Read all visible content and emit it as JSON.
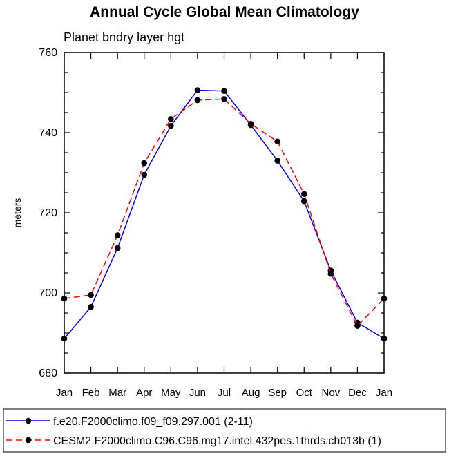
{
  "chart_data": {
    "type": "line",
    "title": "Annual Cycle Global Mean Climatology",
    "subtitle": "Planet bndry layer hgt",
    "xlabel": "",
    "ylabel": "meters",
    "ylim": [
      680,
      760
    ],
    "yticks": [
      "680",
      "700",
      "720",
      "740",
      "760"
    ],
    "categories": [
      "Jan",
      "Feb",
      "Mar",
      "Apr",
      "May",
      "Jun",
      "Jul",
      "Aug",
      "Sep",
      "Oct",
      "Nov",
      "Dec",
      "Jan"
    ],
    "series": [
      {
        "name": "f.e20.F2000climo.f09_f09.297.001 (2-11)",
        "color": "#0000ff",
        "dash": "solid",
        "values": [
          688.6,
          696.5,
          711.2,
          729.5,
          741.7,
          750.6,
          750.4,
          741.9,
          733.0,
          722.9,
          705.6,
          692.6,
          688.6
        ]
      },
      {
        "name": "CESM2.F2000climo.C96.C96.mg17.intel.432pes.1thrds.ch013b (1)",
        "color": "#ff0000",
        "dash": "dashed",
        "values": [
          698.6,
          699.5,
          714.4,
          732.4,
          743.4,
          748.1,
          748.4,
          742.2,
          737.8,
          724.7,
          704.8,
          691.8,
          698.6
        ]
      }
    ],
    "legend_position": "bottom"
  }
}
